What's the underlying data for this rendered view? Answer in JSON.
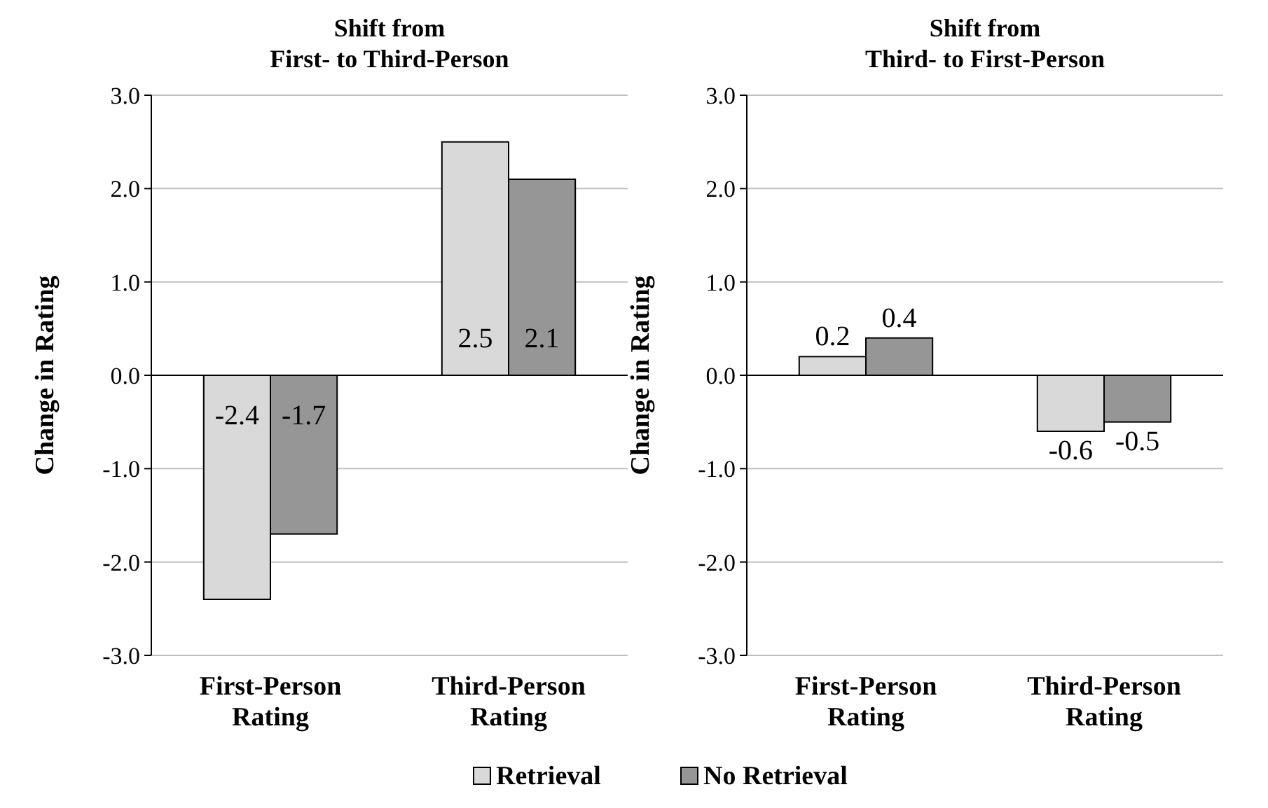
{
  "chart_data": [
    {
      "type": "bar",
      "title": "Shift from\nFirst- to Third-Person",
      "ylabel": "Change in Rating",
      "categories": [
        "First-Person Rating",
        "Third-Person Rating"
      ],
      "series": [
        {
          "name": "Retrieval",
          "color": "#d9d9d9",
          "values": [
            -2.4,
            2.5
          ]
        },
        {
          "name": "No Retrieval",
          "color": "#969696",
          "values": [
            -1.7,
            2.1
          ]
        }
      ],
      "ylim": [
        -3,
        3
      ],
      "yticks": [
        {
          "value": -3,
          "label": "-3.0"
        },
        {
          "value": -2,
          "label": "-2.0"
        },
        {
          "value": -1,
          "label": "-1.0"
        },
        {
          "value": 0,
          "label": "0.0"
        },
        {
          "value": 1,
          "label": "1.0"
        },
        {
          "value": 2,
          "label": "2.0"
        },
        {
          "value": 3,
          "label": "3.0"
        }
      ],
      "grid": "y",
      "data_labels": true,
      "legend": "bottom"
    },
    {
      "type": "bar",
      "title": "Shift from\nThird- to First-Person",
      "ylabel": "Change in Rating",
      "categories": [
        "First-Person Rating",
        "Third-Person Rating"
      ],
      "series": [
        {
          "color": "#d9d9d9",
          "values": [
            0.2,
            -0.6
          ]
        },
        {
          "color": "#969696",
          "values": [
            0.4,
            -0.5
          ]
        }
      ],
      "ylim": [
        -3,
        3
      ],
      "yticks": [
        {
          "value": -3,
          "label": "-3.0"
        },
        {
          "value": -2,
          "label": "-2.0"
        },
        {
          "value": -1,
          "label": "-1.0"
        },
        {
          "value": 0,
          "label": "0.0"
        },
        {
          "value": 1,
          "label": "1.0"
        },
        {
          "value": 2,
          "label": "2.0"
        },
        {
          "value": 3,
          "label": "3.0"
        }
      ],
      "grid": "y",
      "data_labels": true,
      "legend": false
    }
  ]
}
